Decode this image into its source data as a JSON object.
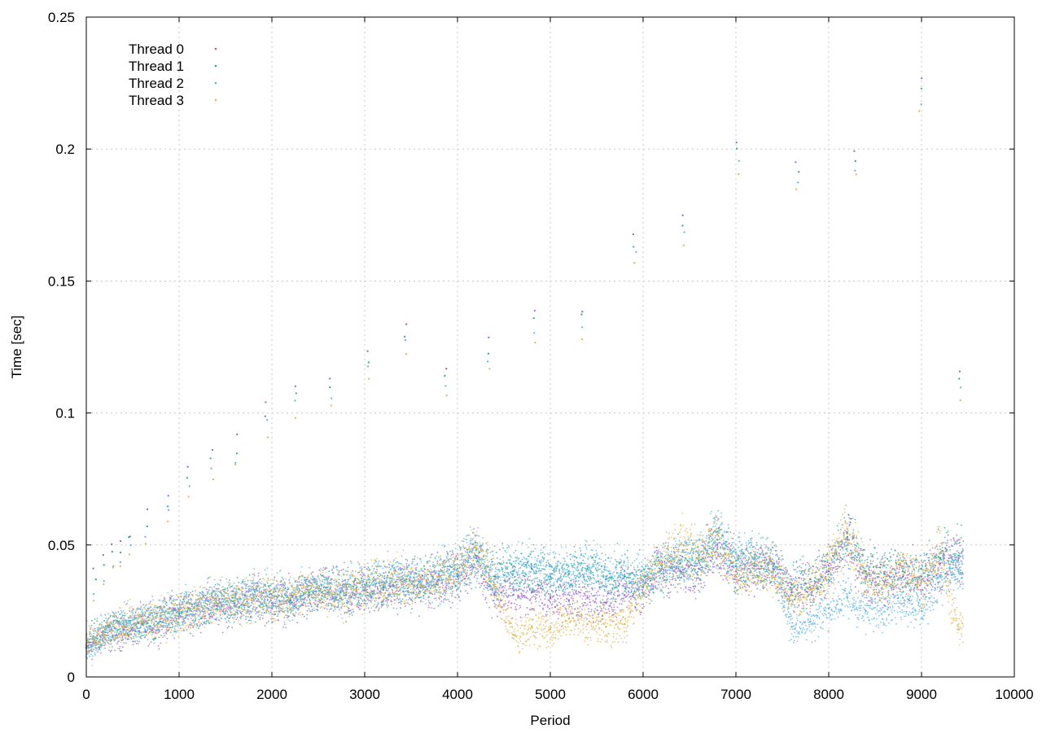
{
  "chart_data": {
    "type": "scatter",
    "title": "",
    "xlabel": "Period",
    "ylabel": "Time [sec]",
    "xlim": [
      0,
      10000
    ],
    "ylim": [
      0,
      0.25
    ],
    "xticks": [
      0,
      1000,
      2000,
      3000,
      4000,
      5000,
      6000,
      7000,
      8000,
      9000,
      10000
    ],
    "xtick_labels": [
      "0",
      "1000",
      "2000",
      "3000",
      "4000",
      "5000",
      "6000",
      "7000",
      "8000",
      "9000",
      "10000"
    ],
    "yticks": [
      0,
      0.05,
      0.1,
      0.15,
      0.2,
      0.25
    ],
    "ytick_labels": [
      "0",
      "0.05",
      "0.1",
      "0.15",
      "0.2",
      "0.25"
    ],
    "grid": true,
    "legend_position": "top-left",
    "series": [
      {
        "name": "Thread 0",
        "color": "#9b59d0",
        "x": [
          0,
          200,
          400,
          600,
          800,
          1000,
          1200,
          1400,
          1600,
          1800,
          2000,
          2200,
          2400,
          2600,
          2800,
          3000,
          3200,
          3400,
          3600,
          3800,
          4000,
          4200,
          4400,
          4600,
          4800,
          5000,
          5200,
          5400,
          5600,
          5800,
          6000,
          6200,
          6400,
          6600,
          6800,
          7000,
          7200,
          7400,
          7600,
          7800,
          8000,
          8200,
          8400,
          8600,
          8800,
          9000,
          9200,
          9400
        ],
        "values": [
          0.011,
          0.016,
          0.018,
          0.02,
          0.021,
          0.024,
          0.026,
          0.027,
          0.027,
          0.031,
          0.028,
          0.029,
          0.031,
          0.032,
          0.031,
          0.033,
          0.033,
          0.035,
          0.034,
          0.037,
          0.038,
          0.045,
          0.031,
          0.031,
          0.032,
          0.03,
          0.029,
          0.03,
          0.028,
          0.031,
          0.034,
          0.041,
          0.04,
          0.041,
          0.05,
          0.04,
          0.042,
          0.041,
          0.032,
          0.034,
          0.04,
          0.052,
          0.038,
          0.036,
          0.038,
          0.036,
          0.043,
          0.045
        ]
      },
      {
        "name": "Thread 1",
        "color": "#2aa198",
        "x": [
          0,
          200,
          400,
          600,
          800,
          1000,
          1200,
          1400,
          1600,
          1800,
          2000,
          2200,
          2400,
          2600,
          2800,
          3000,
          3200,
          3400,
          3600,
          3800,
          4000,
          4200,
          4400,
          4600,
          4800,
          5000,
          5200,
          5400,
          5600,
          5800,
          6000,
          6200,
          6400,
          6600,
          6800,
          7000,
          7200,
          7400,
          7600,
          7800,
          8000,
          8200,
          8400,
          8600,
          8800,
          9000,
          9200,
          9400
        ],
        "values": [
          0.012,
          0.017,
          0.019,
          0.02,
          0.022,
          0.024,
          0.026,
          0.028,
          0.029,
          0.03,
          0.03,
          0.029,
          0.032,
          0.033,
          0.032,
          0.034,
          0.034,
          0.036,
          0.035,
          0.038,
          0.039,
          0.046,
          0.038,
          0.04,
          0.041,
          0.038,
          0.039,
          0.041,
          0.037,
          0.038,
          0.035,
          0.042,
          0.043,
          0.044,
          0.052,
          0.042,
          0.043,
          0.042,
          0.035,
          0.037,
          0.041,
          0.053,
          0.04,
          0.039,
          0.04,
          0.038,
          0.045,
          0.046
        ]
      },
      {
        "name": "Thread 2",
        "color": "#56b4e9",
        "x": [
          0,
          200,
          400,
          600,
          800,
          1000,
          1200,
          1400,
          1600,
          1800,
          2000,
          2200,
          2400,
          2600,
          2800,
          3000,
          3200,
          3400,
          3600,
          3800,
          4000,
          4200,
          4400,
          4600,
          4800,
          5000,
          5200,
          5400,
          5600,
          5800,
          6000,
          6200,
          6400,
          6600,
          6800,
          7000,
          7200,
          7400,
          7600,
          7800,
          8000,
          8200,
          8400,
          8600,
          8800,
          9000,
          9200,
          9400
        ],
        "values": [
          0.012,
          0.017,
          0.02,
          0.021,
          0.023,
          0.025,
          0.027,
          0.029,
          0.03,
          0.031,
          0.031,
          0.03,
          0.033,
          0.034,
          0.033,
          0.035,
          0.036,
          0.037,
          0.036,
          0.039,
          0.041,
          0.048,
          0.037,
          0.039,
          0.042,
          0.039,
          0.04,
          0.042,
          0.038,
          0.04,
          0.036,
          0.043,
          0.044,
          0.046,
          0.055,
          0.044,
          0.045,
          0.043,
          0.019,
          0.021,
          0.026,
          0.03,
          0.025,
          0.027,
          0.03,
          0.025,
          0.038,
          0.04
        ]
      },
      {
        "name": "Thread 3",
        "color": "#e1b64b",
        "x": [
          0,
          200,
          400,
          600,
          800,
          1000,
          1200,
          1400,
          1600,
          1800,
          2000,
          2200,
          2400,
          2600,
          2800,
          3000,
          3200,
          3400,
          3600,
          3800,
          4000,
          4200,
          4400,
          4600,
          4800,
          5000,
          5200,
          5400,
          5600,
          5800,
          6000,
          6200,
          6400,
          6600,
          6800,
          7000,
          7200,
          7400,
          7600,
          7800,
          8000,
          8200,
          8400,
          8600,
          8800,
          9000,
          9200,
          9400
        ],
        "values": [
          0.012,
          0.016,
          0.019,
          0.021,
          0.022,
          0.025,
          0.026,
          0.028,
          0.029,
          0.03,
          0.03,
          0.03,
          0.033,
          0.033,
          0.032,
          0.034,
          0.035,
          0.036,
          0.035,
          0.038,
          0.04,
          0.049,
          0.035,
          0.016,
          0.019,
          0.018,
          0.022,
          0.02,
          0.019,
          0.02,
          0.035,
          0.043,
          0.05,
          0.045,
          0.054,
          0.038,
          0.041,
          0.04,
          0.029,
          0.033,
          0.041,
          0.056,
          0.037,
          0.035,
          0.042,
          0.036,
          0.047,
          0.018
        ]
      }
    ],
    "outliers": {
      "x": [
        90,
        180,
        280,
        360,
        470,
        650,
        880,
        1100,
        1350,
        1620,
        1940,
        2260,
        2640,
        3030,
        3440,
        3880,
        4330,
        4840,
        5350,
        5910,
        6440,
        7020,
        7660,
        8290,
        8990,
        9420
      ],
      "values": [
        0.04,
        0.045,
        0.05,
        0.052,
        0.055,
        0.062,
        0.07,
        0.078,
        0.086,
        0.09,
        0.103,
        0.11,
        0.114,
        0.124,
        0.133,
        0.118,
        0.128,
        0.139,
        0.14,
        0.168,
        0.175,
        0.202,
        0.196,
        0.2,
        0.225,
        0.116
      ]
    }
  }
}
